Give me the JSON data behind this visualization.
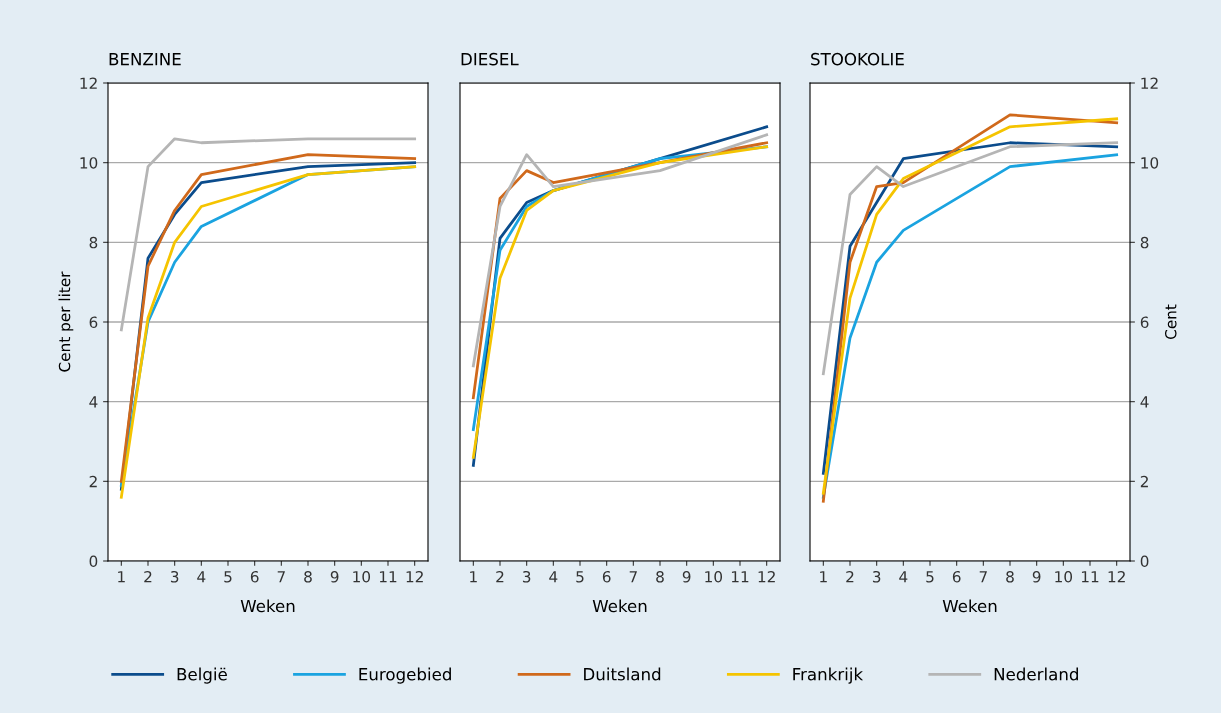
{
  "chart_data": [
    {
      "type": "line",
      "title": "BENZINE",
      "xlabel": "Weken",
      "ylabel": "Cent per liter",
      "x": [
        1,
        2,
        3,
        4,
        8,
        12
      ],
      "xlim": [
        0.5,
        12.5
      ],
      "xticks": [
        1,
        2,
        3,
        4,
        5,
        6,
        7,
        8,
        9,
        10,
        11,
        12
      ],
      "ylim": [
        0,
        12
      ],
      "yticks": [
        0,
        2,
        4,
        6,
        8,
        10,
        12
      ],
      "grid": "y",
      "legend": "bottom",
      "series": [
        {
          "name": "België",
          "color": "#0b4c8c",
          "values": [
            1.8,
            7.6,
            8.7,
            9.5,
            9.9,
            10.0
          ]
        },
        {
          "name": "Eurogebied",
          "color": "#1aa3e0",
          "values": [
            1.9,
            6.0,
            7.5,
            8.4,
            9.7,
            9.9
          ]
        },
        {
          "name": "Duitsland",
          "color": "#d0691b",
          "values": [
            2.0,
            7.4,
            8.8,
            9.7,
            10.2,
            10.1
          ]
        },
        {
          "name": "Frankrijk",
          "color": "#f5c400",
          "values": [
            1.6,
            6.1,
            8.0,
            8.9,
            9.7,
            9.9
          ]
        },
        {
          "name": "Nederland",
          "color": "#b5b5b5",
          "values": [
            5.8,
            9.9,
            10.6,
            10.5,
            10.6,
            10.6
          ]
        }
      ]
    },
    {
      "type": "line",
      "title": "DIESEL",
      "xlabel": "Weken",
      "x": [
        1,
        2,
        3,
        4,
        8,
        12
      ],
      "xlim": [
        0.5,
        12.5
      ],
      "xticks": [
        1,
        2,
        3,
        4,
        5,
        6,
        7,
        8,
        9,
        10,
        11,
        12
      ],
      "ylim": [
        0,
        12
      ],
      "yticks": [
        0,
        2,
        4,
        6,
        8,
        10,
        12
      ],
      "grid": "y",
      "tick_labels": "x",
      "series": [
        {
          "color": "#0b4c8c",
          "values": [
            2.4,
            8.1,
            9.0,
            9.3,
            10.1,
            10.9
          ]
        },
        {
          "color": "#1aa3e0",
          "values": [
            3.3,
            7.8,
            8.9,
            9.3,
            10.1,
            10.4
          ]
        },
        {
          "color": "#d0691b",
          "values": [
            4.1,
            9.1,
            9.8,
            9.5,
            10.0,
            10.5
          ]
        },
        {
          "color": "#f5c400",
          "values": [
            2.6,
            7.1,
            8.8,
            9.3,
            10.0,
            10.4
          ]
        },
        {
          "color": "#b5b5b5",
          "values": [
            4.9,
            8.9,
            10.2,
            9.4,
            9.8,
            10.7
          ]
        }
      ]
    },
    {
      "type": "line",
      "title": "STOOKOLIE",
      "xlabel": "Weken",
      "y2label": "Cent",
      "x": [
        1,
        2,
        3,
        4,
        8,
        12
      ],
      "xlim": [
        0.5,
        12.5
      ],
      "xticks": [
        1,
        2,
        3,
        4,
        5,
        6,
        7,
        8,
        9,
        10,
        11,
        12
      ],
      "y2lim": [
        0,
        12
      ],
      "y2ticks": [
        0,
        2,
        4,
        6,
        8,
        10,
        12
      ],
      "grid": "y",
      "series": [
        {
          "color": "#0b4c8c",
          "axis": "y2",
          "values": [
            2.2,
            7.9,
            9.0,
            10.1,
            10.5,
            10.4
          ]
        },
        {
          "color": "#1aa3e0",
          "axis": "y2",
          "values": [
            1.6,
            5.6,
            7.5,
            8.3,
            9.9,
            10.2
          ]
        },
        {
          "color": "#d0691b",
          "axis": "y2",
          "values": [
            1.5,
            7.5,
            9.4,
            9.5,
            11.2,
            11.0
          ]
        },
        {
          "color": "#f5c400",
          "axis": "y2",
          "values": [
            1.7,
            6.6,
            8.7,
            9.6,
            10.9,
            11.1
          ]
        },
        {
          "color": "#b5b5b5",
          "axis": "y2",
          "values": [
            4.7,
            9.2,
            9.9,
            9.4,
            10.4,
            10.5
          ]
        }
      ]
    }
  ]
}
